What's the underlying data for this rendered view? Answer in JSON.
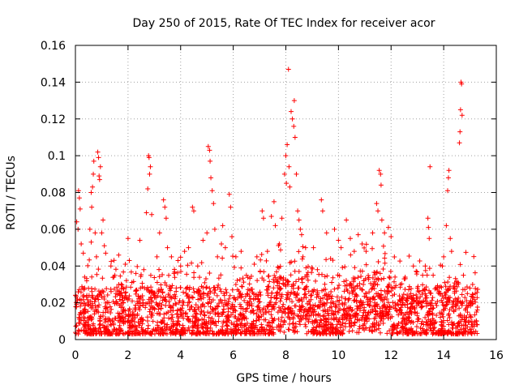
{
  "chart_data": {
    "type": "scatter",
    "title": "Day 250 of 2015, Rate Of TEC Index for receiver acor",
    "xlabel": "GPS time / hours",
    "ylabel": "ROTI / TECUs",
    "xlim": [
      0,
      16
    ],
    "ylim": [
      0,
      0.16
    ],
    "xticks": [
      0,
      2,
      4,
      6,
      8,
      10,
      12,
      14,
      16
    ],
    "yticks": [
      0,
      0.02,
      0.04,
      0.06,
      0.08,
      0.1,
      0.12,
      0.14,
      0.16
    ],
    "xtick_labels": [
      "0",
      "2",
      "4",
      "6",
      "8",
      "10",
      "12",
      "14",
      "16"
    ],
    "ytick_labels": [
      "0",
      "0.02",
      "0.04",
      "0.06",
      "0.08",
      "0.1",
      "0.12",
      "0.14",
      "0.16"
    ],
    "grid": true,
    "marker": "plus",
    "color": "#ff0000",
    "data_x_range": [
      0,
      15.3
    ],
    "series": [
      {
        "name": "ROTI",
        "points": [
          [
            0.05,
            0.064
          ],
          [
            0.1,
            0.06
          ],
          [
            0.12,
            0.081
          ],
          [
            0.15,
            0.077
          ],
          [
            0.18,
            0.071
          ],
          [
            0.22,
            0.052
          ],
          [
            0.3,
            0.047
          ],
          [
            0.35,
            0.034
          ],
          [
            0.55,
            0.06
          ],
          [
            0.6,
            0.053
          ],
          [
            0.6,
            0.08
          ],
          [
            0.62,
            0.072
          ],
          [
            0.65,
            0.083
          ],
          [
            0.68,
            0.09
          ],
          [
            0.7,
            0.097
          ],
          [
            0.75,
            0.058
          ],
          [
            0.8,
            0.045
          ],
          [
            0.85,
            0.102
          ],
          [
            0.88,
            0.099
          ],
          [
            0.9,
            0.089
          ],
          [
            0.92,
            0.087
          ],
          [
            0.95,
            0.094
          ],
          [
            1.0,
            0.058
          ],
          [
            1.05,
            0.065
          ],
          [
            1.1,
            0.051
          ],
          [
            1.15,
            0.047
          ],
          [
            1.35,
            0.04
          ],
          [
            1.5,
            0.035
          ],
          [
            1.65,
            0.03
          ],
          [
            1.9,
            0.041
          ],
          [
            2.0,
            0.055
          ],
          [
            2.05,
            0.043
          ],
          [
            2.3,
            0.036
          ],
          [
            2.45,
            0.054
          ],
          [
            2.6,
            0.038
          ],
          [
            2.7,
            0.069
          ],
          [
            2.75,
            0.082
          ],
          [
            2.78,
            0.1
          ],
          [
            2.8,
            0.099
          ],
          [
            2.82,
            0.09
          ],
          [
            2.85,
            0.094
          ],
          [
            2.9,
            0.068
          ],
          [
            3.1,
            0.045
          ],
          [
            3.2,
            0.058
          ],
          [
            3.35,
            0.076
          ],
          [
            3.4,
            0.072
          ],
          [
            3.45,
            0.066
          ],
          [
            3.5,
            0.05
          ],
          [
            3.65,
            0.045
          ],
          [
            3.75,
            0.036
          ],
          [
            3.9,
            0.043
          ],
          [
            4.0,
            0.04
          ],
          [
            4.15,
            0.048
          ],
          [
            4.3,
            0.05
          ],
          [
            4.45,
            0.072
          ],
          [
            4.5,
            0.07
          ],
          [
            4.65,
            0.04
          ],
          [
            4.85,
            0.054
          ],
          [
            5.0,
            0.058
          ],
          [
            5.05,
            0.105
          ],
          [
            5.1,
            0.103
          ],
          [
            5.12,
            0.097
          ],
          [
            5.15,
            0.088
          ],
          [
            5.2,
            0.081
          ],
          [
            5.25,
            0.074
          ],
          [
            5.3,
            0.06
          ],
          [
            5.4,
            0.045
          ],
          [
            5.55,
            0.052
          ],
          [
            5.6,
            0.062
          ],
          [
            5.7,
            0.05
          ],
          [
            5.85,
            0.079
          ],
          [
            5.9,
            0.072
          ],
          [
            5.95,
            0.056
          ],
          [
            6.1,
            0.045
          ],
          [
            6.3,
            0.048
          ],
          [
            6.5,
            0.035
          ],
          [
            6.8,
            0.041
          ],
          [
            6.9,
            0.045
          ],
          [
            7.1,
            0.07
          ],
          [
            7.15,
            0.066
          ],
          [
            7.3,
            0.048
          ],
          [
            7.45,
            0.067
          ],
          [
            7.55,
            0.075
          ],
          [
            7.6,
            0.062
          ],
          [
            7.75,
            0.052
          ],
          [
            7.85,
            0.066
          ],
          [
            7.95,
            0.09
          ],
          [
            8.0,
            0.1
          ],
          [
            8.02,
            0.085
          ],
          [
            8.05,
            0.106
          ],
          [
            8.1,
            0.147
          ],
          [
            8.12,
            0.094
          ],
          [
            8.15,
            0.083
          ],
          [
            8.2,
            0.124
          ],
          [
            8.25,
            0.12
          ],
          [
            8.3,
            0.116
          ],
          [
            8.32,
            0.13
          ],
          [
            8.35,
            0.11
          ],
          [
            8.4,
            0.09
          ],
          [
            8.45,
            0.07
          ],
          [
            8.5,
            0.065
          ],
          [
            8.55,
            0.06
          ],
          [
            8.6,
            0.057
          ],
          [
            8.65,
            0.045
          ],
          [
            8.75,
            0.05
          ],
          [
            9.05,
            0.05
          ],
          [
            9.2,
            0.038
          ],
          [
            9.35,
            0.076
          ],
          [
            9.4,
            0.07
          ],
          [
            9.55,
            0.058
          ],
          [
            9.7,
            0.044
          ],
          [
            9.85,
            0.06
          ],
          [
            10.0,
            0.054
          ],
          [
            10.1,
            0.05
          ],
          [
            10.3,
            0.065
          ],
          [
            10.45,
            0.055
          ],
          [
            10.6,
            0.048
          ],
          [
            10.75,
            0.057
          ],
          [
            10.9,
            0.052
          ],
          [
            11.05,
            0.048
          ],
          [
            11.3,
            0.058
          ],
          [
            11.45,
            0.074
          ],
          [
            11.5,
            0.07
          ],
          [
            11.55,
            0.092
          ],
          [
            11.6,
            0.09
          ],
          [
            11.62,
            0.084
          ],
          [
            11.65,
            0.065
          ],
          [
            11.75,
            0.058
          ],
          [
            11.9,
            0.061
          ],
          [
            12.0,
            0.056
          ],
          [
            12.15,
            0.034
          ],
          [
            12.35,
            0.03
          ],
          [
            12.5,
            0.033
          ],
          [
            12.75,
            0.025
          ],
          [
            13.0,
            0.028
          ],
          [
            13.2,
            0.035
          ],
          [
            13.3,
            0.04
          ],
          [
            13.4,
            0.066
          ],
          [
            13.42,
            0.061
          ],
          [
            13.45,
            0.055
          ],
          [
            13.48,
            0.094
          ],
          [
            13.6,
            0.035
          ],
          [
            13.75,
            0.027
          ],
          [
            13.95,
            0.04
          ],
          [
            14.0,
            0.045
          ],
          [
            14.1,
            0.062
          ],
          [
            14.15,
            0.081
          ],
          [
            14.18,
            0.088
          ],
          [
            14.2,
            0.092
          ],
          [
            14.25,
            0.055
          ],
          [
            14.3,
            0.048
          ],
          [
            14.5,
            0.03
          ],
          [
            14.6,
            0.107
          ],
          [
            14.62,
            0.113
          ],
          [
            14.64,
            0.125
          ],
          [
            14.66,
            0.14
          ],
          [
            14.68,
            0.139
          ],
          [
            14.7,
            0.122
          ],
          [
            14.75,
            0.035
          ],
          [
            14.9,
            0.025
          ],
          [
            15.0,
            0.028
          ],
          [
            15.1,
            0.03
          ],
          [
            15.2,
            0.025
          ],
          [
            15.25,
            0.015
          ]
        ]
      }
    ]
  }
}
